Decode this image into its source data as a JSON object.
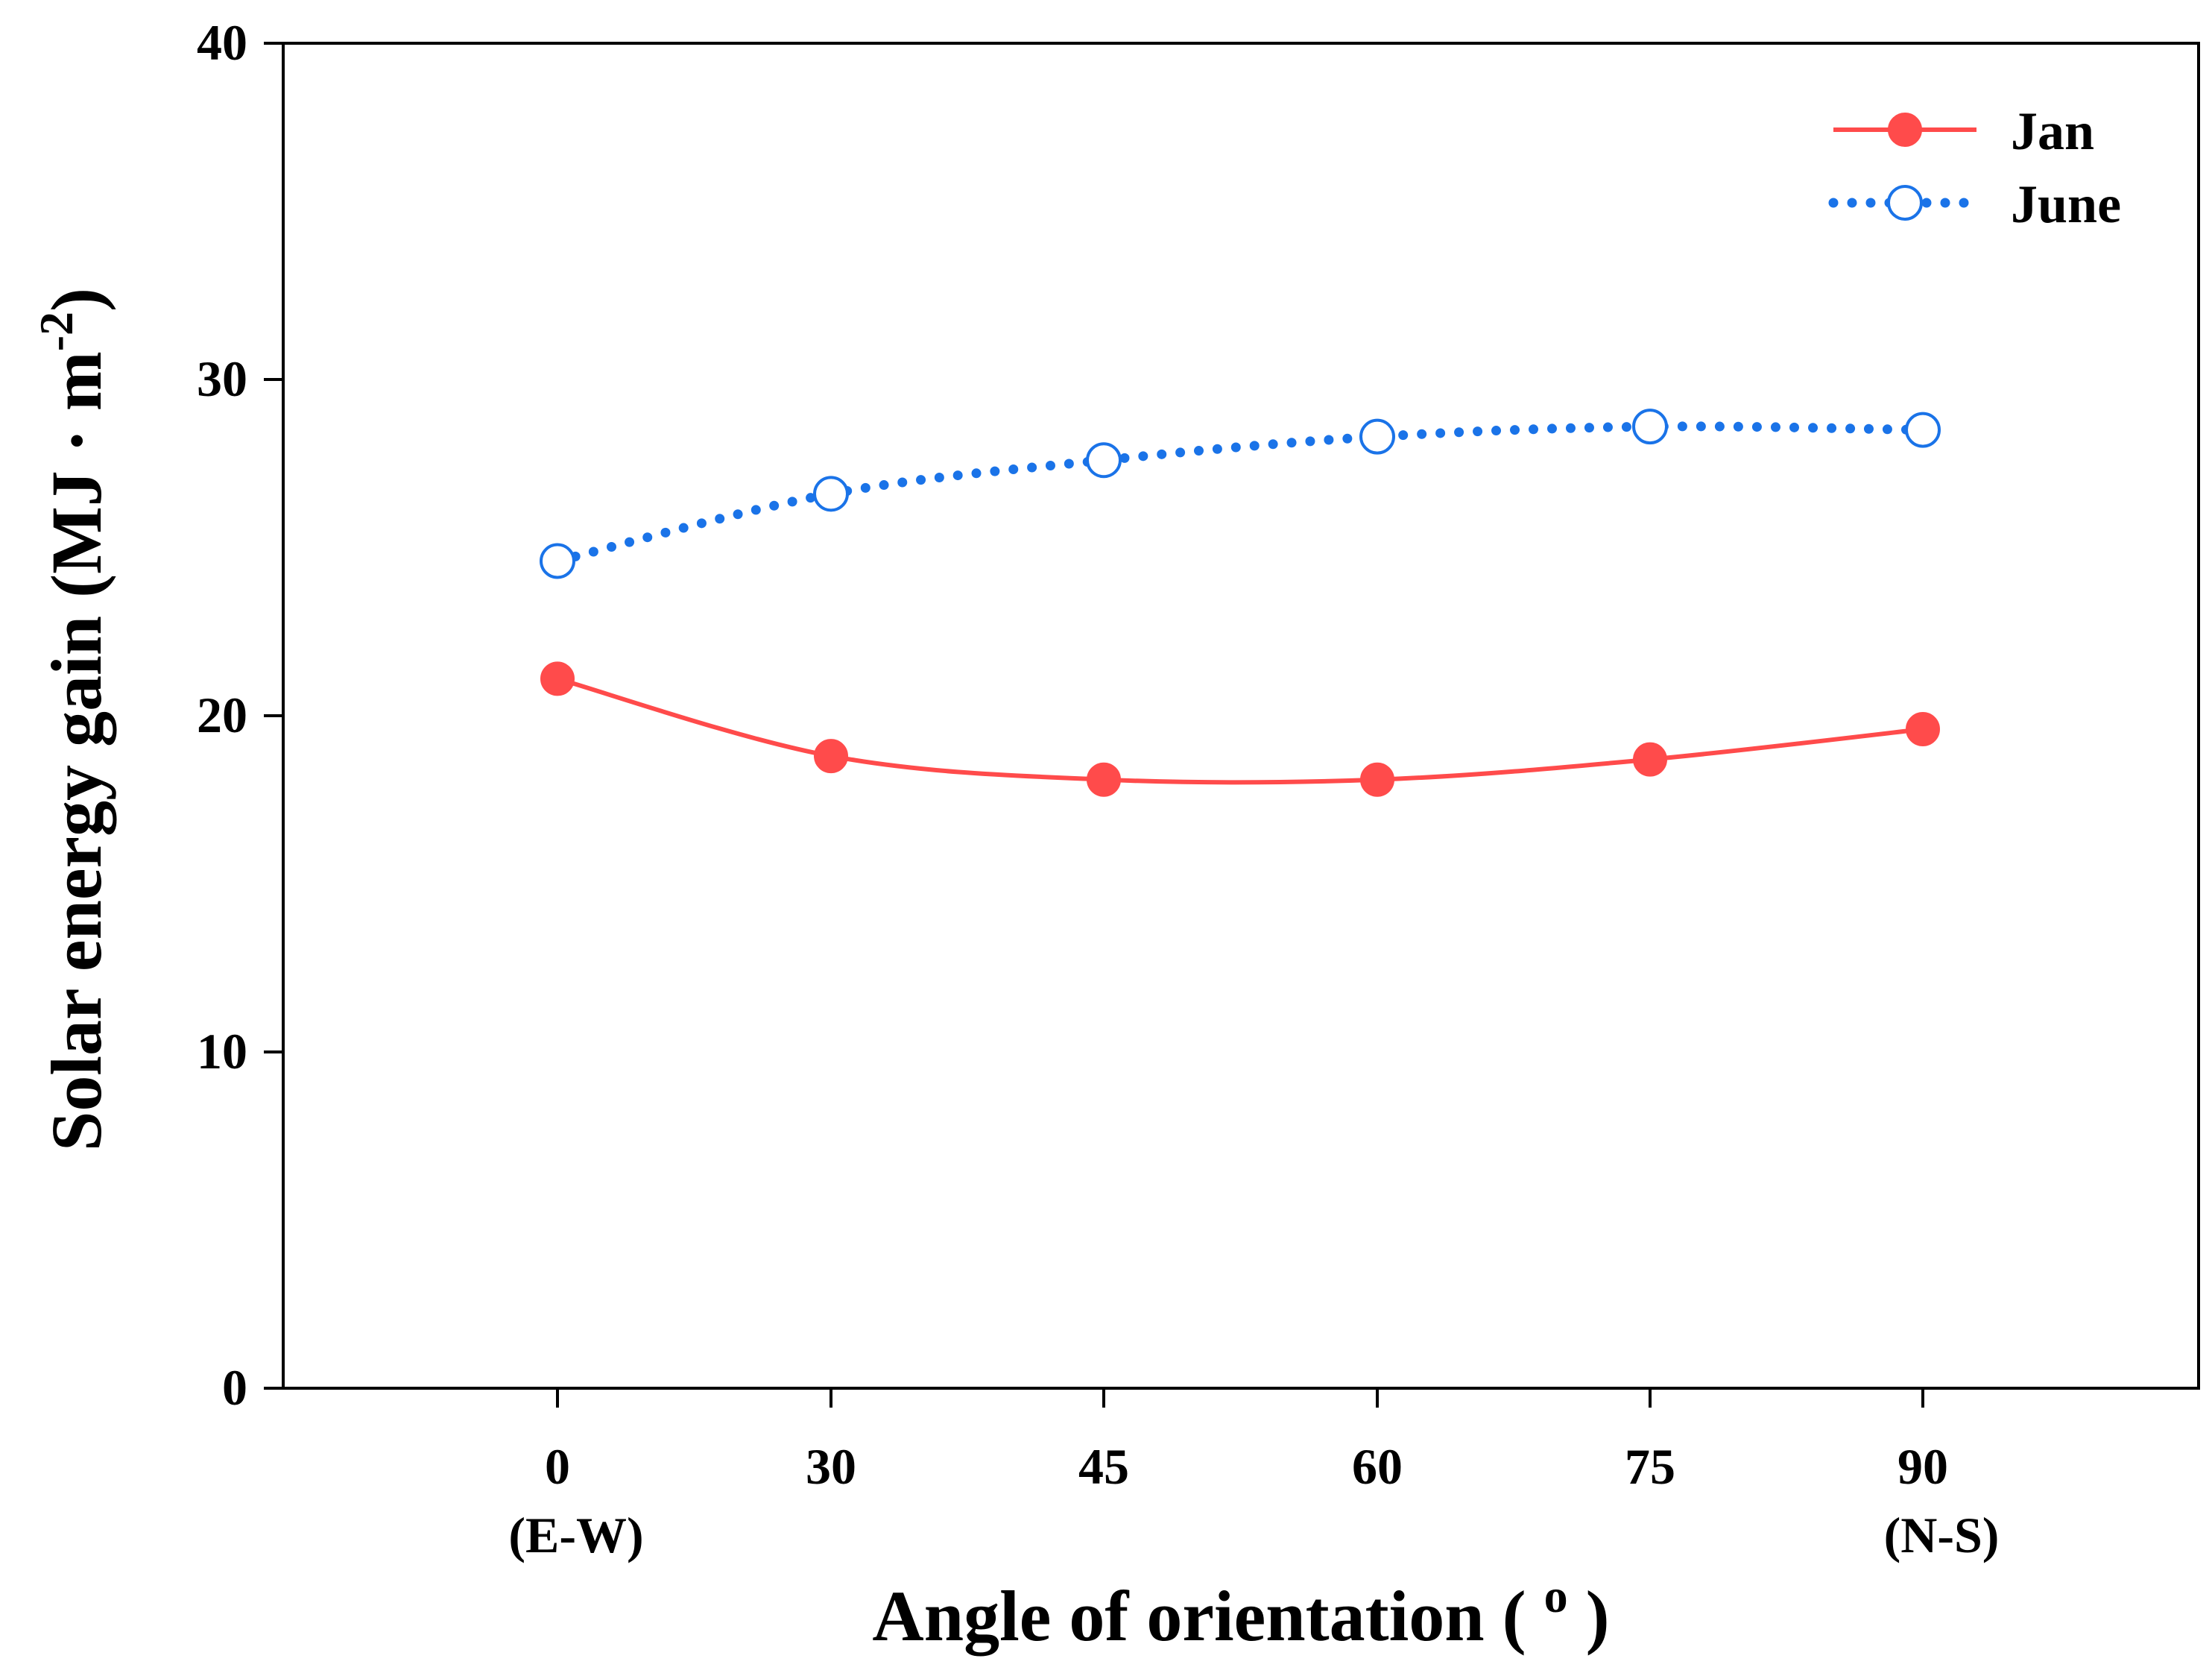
{
  "chart_data": {
    "type": "line",
    "title": "",
    "xlabel": "Angle of orientation ( ",
    "xlabel_sup": "o",
    "xlabel_end": " )",
    "ylabel": "Solar energy gain (MJ · m",
    "ylabel_sup": "-2",
    "ylabel_end": ")",
    "x": [
      0,
      30,
      45,
      60,
      75,
      90
    ],
    "x_tick_labels": [
      "0",
      "30",
      "45",
      "60",
      "75",
      "90"
    ],
    "x_tick_sublabels": [
      "(E-W)",
      "",
      "",
      "",
      "",
      "(N-S)"
    ],
    "y_ticks": [
      0,
      10,
      20,
      30,
      40
    ],
    "y_tick_labels": [
      "0",
      "10",
      "20",
      "30",
      "40"
    ],
    "ylim": [
      0,
      40
    ],
    "grid": false,
    "legend": "top-right",
    "series": [
      {
        "name": "Jan",
        "values": [
          21.1,
          18.8,
          18.1,
          18.1,
          18.7,
          19.6
        ],
        "color": "#ff4b4b",
        "style": "solid",
        "marker": "filled-circle"
      },
      {
        "name": "June",
        "values": [
          24.6,
          26.6,
          27.6,
          28.3,
          28.6,
          28.5
        ],
        "color": "#1a73e8",
        "style": "dotted",
        "marker": "open-circle"
      }
    ]
  }
}
